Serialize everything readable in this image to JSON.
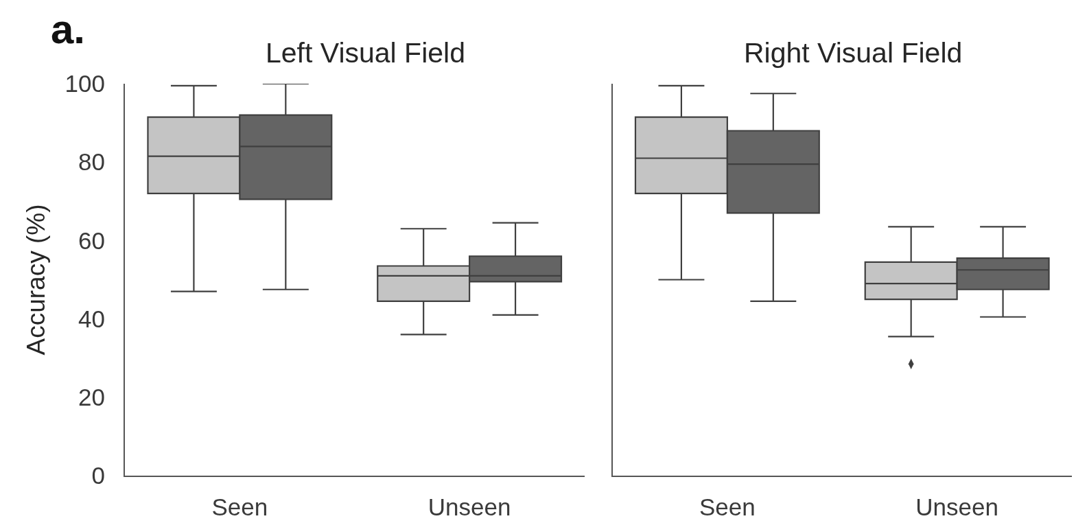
{
  "chart_data": [
    {
      "type": "box",
      "title": "Left Visual Field",
      "ylabel": "Accuracy (%)",
      "annotations": [
        "a."
      ],
      "categories": [
        "Seen",
        "Unseen"
      ],
      "ylim": [
        0,
        100
      ],
      "yticks": [
        0,
        20,
        40,
        60,
        80,
        100
      ],
      "series": [
        {
          "color": "#c4c4c4",
          "boxes": [
            {
              "low": 47,
              "q1": 72,
              "median": 81.5,
              "q3": 91.5,
              "high": 99.5
            },
            {
              "low": 36,
              "q1": 44.5,
              "median": 51,
              "q3": 53.5,
              "high": 63
            }
          ]
        },
        {
          "color": "#646464",
          "boxes": [
            {
              "low": 47.5,
              "q1": 70.5,
              "median": 84,
              "q3": 92,
              "high": 100
            },
            {
              "low": 41,
              "q1": 49.5,
              "median": 51,
              "q3": 56,
              "high": 64.5
            }
          ]
        }
      ]
    },
    {
      "type": "box",
      "title": "Right Visual Field",
      "categories": [
        "Seen",
        "Unseen"
      ],
      "ylim": [
        0,
        100
      ],
      "yticks": [
        0,
        20,
        40,
        60,
        80,
        100
      ],
      "tick_labels": "x",
      "series": [
        {
          "color": "#c4c4c4",
          "boxes": [
            {
              "low": 50,
              "q1": 72,
              "median": 81,
              "q3": 91.5,
              "high": 99.5
            },
            {
              "low": 35.5,
              "q1": 45,
              "median": 49,
              "q3": 54.5,
              "high": 63.5,
              "outliers": [
                28.5
              ]
            }
          ]
        },
        {
          "color": "#646464",
          "boxes": [
            {
              "low": 44.5,
              "q1": 67,
              "median": 79.5,
              "q3": 88,
              "high": 97.5
            },
            {
              "low": 40.5,
              "q1": 47.5,
              "median": 52.5,
              "q3": 55.5,
              "high": 63.5
            }
          ]
        }
      ]
    }
  ]
}
